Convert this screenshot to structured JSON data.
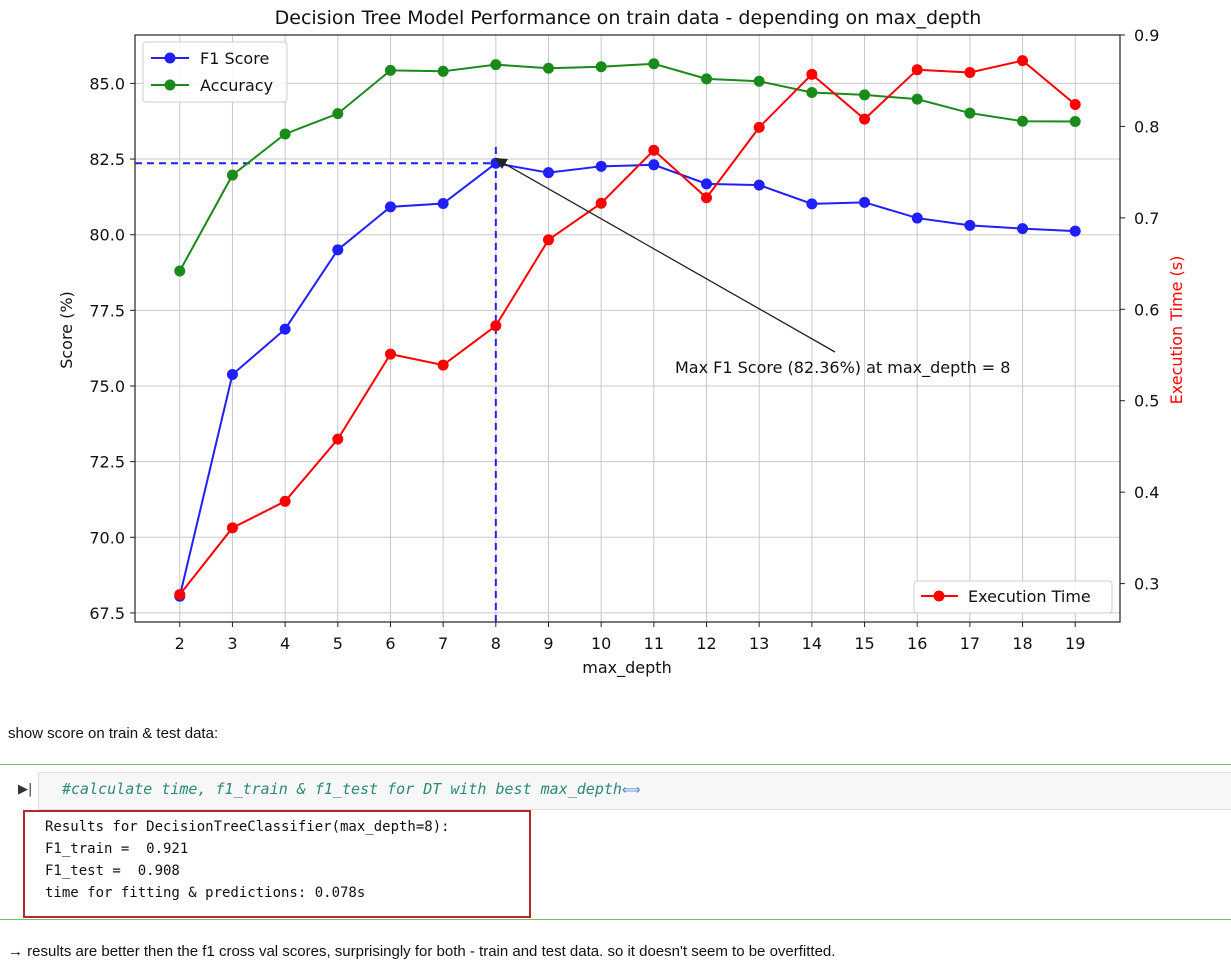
{
  "chart_data": {
    "type": "line",
    "title": "Decision Tree Model Performance on train data - depending on max_depth",
    "xlabel": "max_depth",
    "ylabel": "Score (%)",
    "y2label": "Execution Time (s)",
    "x": [
      2,
      3,
      4,
      5,
      6,
      7,
      8,
      9,
      10,
      11,
      12,
      13,
      14,
      15,
      16,
      17,
      18,
      19
    ],
    "ylim": [
      67.2,
      86.6
    ],
    "y2lim": [
      0.258,
      0.9
    ],
    "yticks": [
      "67.5",
      "70.0",
      "72.5",
      "75.0",
      "77.5",
      "80.0",
      "82.5",
      "85.0"
    ],
    "yticks_values": [
      67.5,
      70.0,
      72.5,
      75.0,
      77.5,
      80.0,
      82.5,
      85.0
    ],
    "y2ticks": [
      "0.3",
      "0.4",
      "0.5",
      "0.6",
      "0.7",
      "0.8",
      "0.9"
    ],
    "y2ticks_values": [
      0.3,
      0.4,
      0.5,
      0.6,
      0.7,
      0.8,
      0.9
    ],
    "grid": true,
    "series": [
      {
        "name": "F1 Score",
        "axis": "left",
        "color": "#1f1fff",
        "values": [
          68.05,
          75.38,
          76.88,
          79.5,
          80.92,
          81.03,
          82.36,
          82.05,
          82.26,
          82.31,
          81.68,
          81.64,
          81.02,
          81.07,
          80.55,
          80.31,
          80.2,
          80.12
        ]
      },
      {
        "name": "Accuracy",
        "axis": "left",
        "color": "#1a8a1a",
        "values": [
          78.8,
          81.97,
          83.33,
          84.0,
          85.43,
          85.4,
          85.62,
          85.5,
          85.55,
          85.65,
          85.15,
          85.07,
          84.7,
          84.62,
          84.48,
          84.02,
          83.75,
          83.74
        ]
      },
      {
        "name": "Execution Time",
        "axis": "right",
        "color": "#ff0000",
        "values": [
          0.288,
          0.361,
          0.39,
          0.458,
          0.551,
          0.539,
          0.582,
          0.676,
          0.716,
          0.774,
          0.722,
          0.799,
          0.857,
          0.808,
          0.862,
          0.859,
          0.872,
          0.824
        ]
      }
    ],
    "legend_left": [
      "F1 Score",
      "Accuracy"
    ],
    "legend_right": [
      "Execution Time"
    ],
    "annotation": {
      "text": "Max F1 Score (82.36%) at max_depth = 8",
      "x": 8,
      "y": 82.36
    }
  },
  "notebook": {
    "markdown_1": "show score on train & test data:",
    "code_comment": "#calculate time, f1_train & f1_test for DT with best max_depth",
    "expand_glyph": "⟺",
    "run_glyph": "▶|",
    "collapse_glyph": "▸",
    "output": [
      "Results for DecisionTreeClassifier(max_depth=8):",
      "F1_train =  0.921",
      "F1_test =  0.908",
      "time for fitting & predictions: 0.078s"
    ],
    "markdown_2": "→ results are better then the f1 cross val scores, surprisingly for both - train and test data. so it doesn't seem to be overfitted."
  }
}
